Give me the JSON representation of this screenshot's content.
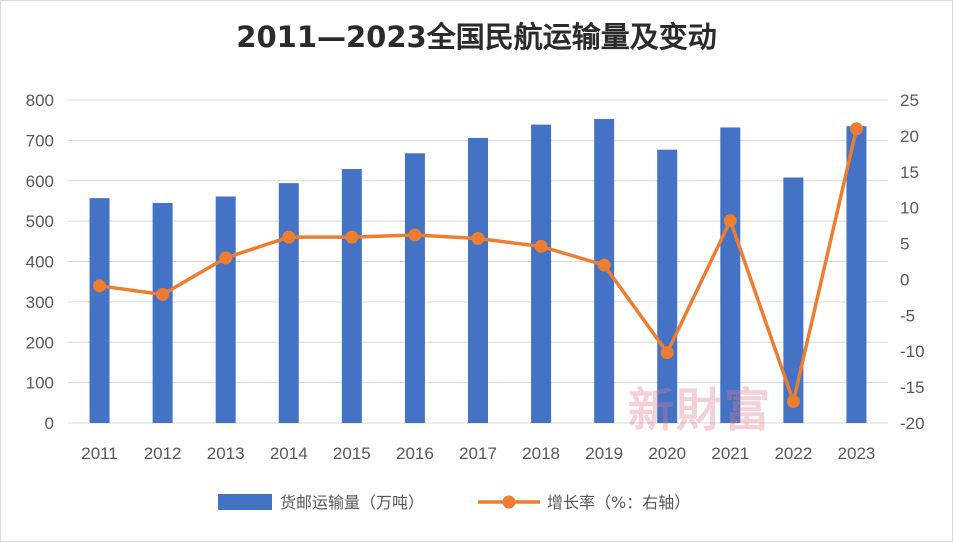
{
  "chart_data": {
    "type": "bar+line",
    "title": "2011—2023全国民航运输量及变动",
    "categories": [
      "2011",
      "2012",
      "2013",
      "2014",
      "2015",
      "2016",
      "2017",
      "2018",
      "2019",
      "2020",
      "2021",
      "2022",
      "2023"
    ],
    "series": [
      {
        "name": "货邮运输量（万吨）",
        "type": "bar",
        "axis": "left",
        "color": "#4472C4",
        "values": [
          557,
          545,
          561,
          594,
          629,
          668,
          706,
          739,
          753,
          677,
          732,
          608,
          735
        ]
      },
      {
        "name": "增长率（%：右轴）",
        "type": "line",
        "axis": "right",
        "color": "#ED7D31",
        "values": [
          -0.9,
          -2.1,
          3.0,
          5.9,
          5.9,
          6.2,
          5.7,
          4.6,
          2.0,
          -10.2,
          8.2,
          -17.0,
          21.0
        ]
      }
    ],
    "y_left": {
      "min": 0,
      "max": 800,
      "ticks": [
        "0",
        "100",
        "200",
        "300",
        "400",
        "500",
        "600",
        "700",
        "800"
      ]
    },
    "y_right": {
      "min": -20,
      "max": 25,
      "ticks": [
        "-20",
        "-15",
        "-10",
        "-5",
        "0",
        "5",
        "10",
        "15",
        "20",
        "25"
      ]
    },
    "grid": true,
    "legend_position": "bottom"
  },
  "watermark": "新財富"
}
